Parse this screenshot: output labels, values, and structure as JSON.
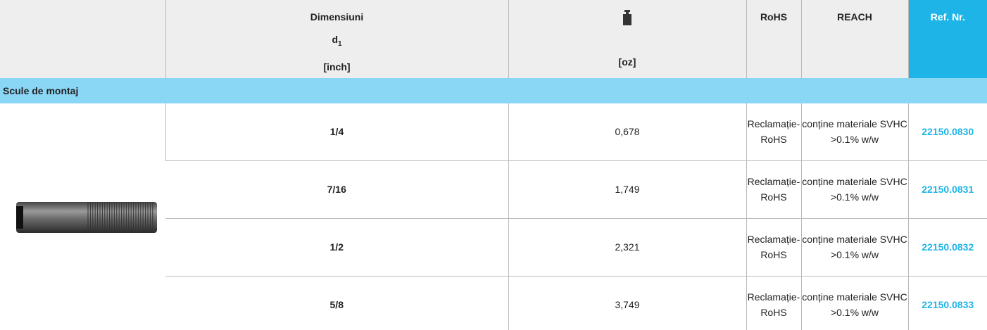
{
  "header": {
    "dimension": {
      "title": "Dimensiuni",
      "symbol": "d",
      "subscript": "1",
      "unit": "[inch]"
    },
    "weight": {
      "unit": "[oz]"
    },
    "rohs": "RoHS",
    "reach": "REACH",
    "ref": "Ref. Nr."
  },
  "section": "Scule de montaj",
  "rows": [
    {
      "d1": "1/4",
      "weight": "0,678",
      "rohs": "Reclamație-RoHS",
      "reach": "conține materiale SVHC >0.1% w/w",
      "ref": "22150.0830"
    },
    {
      "d1": "7/16",
      "weight": "1,749",
      "rohs": "Reclamație-RoHS",
      "reach": "conține materiale SVHC >0.1% w/w",
      "ref": "22150.0831"
    },
    {
      "d1": "1/2",
      "weight": "2,321",
      "rohs": "Reclamație-RoHS",
      "reach": "conține materiale SVHC >0.1% w/w",
      "ref": "22150.0832"
    },
    {
      "d1": "5/8",
      "weight": "3,749",
      "rohs": "Reclamație-RoHS",
      "reach": "conține materiale SVHC >0.1% w/w",
      "ref": "22150.0833"
    }
  ]
}
